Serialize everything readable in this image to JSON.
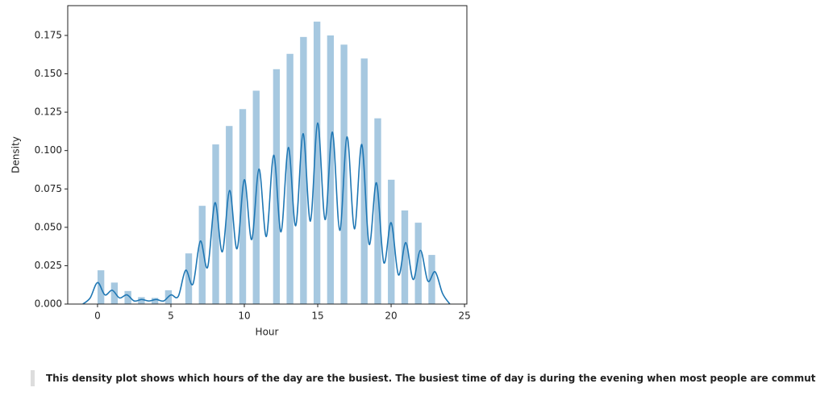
{
  "chart_data": {
    "type": "histogram",
    "xlabel": "Hour",
    "ylabel": "Density",
    "bins": [
      0,
      0.46,
      0.92,
      1.38,
      1.84,
      2.3,
      2.76,
      3.22,
      3.68,
      4.14,
      4.6,
      5.06,
      5.52,
      5.98,
      6.44,
      6.9,
      7.36,
      7.82,
      8.28,
      8.74,
      9.2,
      9.66,
      10.12,
      10.58,
      11.04,
      11.5,
      11.96,
      12.42,
      12.88,
      13.34,
      13.8,
      14.26,
      14.72,
      15.18,
      15.64,
      16.1,
      16.56,
      17.02,
      17.48,
      17.94,
      18.4,
      18.86,
      19.32,
      19.78,
      20.24,
      20.7,
      21.16,
      21.62,
      22.08,
      22.54,
      23
    ],
    "values": [
      0.022,
      0,
      0.014,
      0,
      0.0085,
      0,
      0.0045,
      0,
      0.004,
      0,
      0.009,
      0,
      0,
      0.033,
      0,
      0.064,
      0,
      0.104,
      0,
      0.116,
      0,
      0.127,
      0,
      0.139,
      0,
      0,
      0.153,
      0,
      0.163,
      0,
      0.174,
      0,
      0.184,
      0,
      0.175,
      0,
      0.169,
      0,
      0,
      0.16,
      0,
      0.121,
      0,
      0.081,
      0,
      0.061,
      0,
      0.053,
      0,
      0.032
    ],
    "color": "#a6c8e0",
    "kde": {
      "color": "#1f77b4",
      "x": [
        -1,
        -0.5,
        0,
        0.5,
        1,
        1.5,
        2,
        2.5,
        3,
        3.5,
        4,
        4.5,
        5,
        5.5,
        6,
        6.5,
        7,
        7.5,
        8,
        8.5,
        9,
        9.5,
        10,
        10.5,
        11,
        11.5,
        12,
        12.5,
        13,
        13.5,
        14,
        14.5,
        15,
        15.5,
        16,
        16.5,
        17,
        17.5,
        18,
        18.5,
        19,
        19.5,
        20,
        20.5,
        21,
        21.5,
        22,
        22.5,
        23,
        23.5,
        24
      ],
      "values": [
        0,
        0.004,
        0.014,
        0.006,
        0.009,
        0.004,
        0.006,
        0.002,
        0.003,
        0.002,
        0.003,
        0.002,
        0.006,
        0.005,
        0.022,
        0.013,
        0.041,
        0.024,
        0.066,
        0.034,
        0.074,
        0.036,
        0.081,
        0.042,
        0.088,
        0.044,
        0.097,
        0.047,
        0.102,
        0.051,
        0.111,
        0.054,
        0.118,
        0.055,
        0.112,
        0.048,
        0.109,
        0.049,
        0.104,
        0.039,
        0.079,
        0.027,
        0.053,
        0.019,
        0.04,
        0.016,
        0.035,
        0.015,
        0.021,
        0.007,
        0
      ]
    },
    "xlim": [
      -2.03,
      25.16
    ],
    "ylim": [
      0,
      0.1944
    ],
    "xticks": [
      0,
      5,
      10,
      15,
      20,
      25
    ],
    "yticks": [
      {
        "value": 0,
        "label": "0.000"
      },
      0.025,
      {
        "value": 0.05,
        "label": "0.050"
      },
      0.075,
      {
        "value": 0.1,
        "label": "0.100"
      },
      0.125,
      {
        "value": 0.15,
        "label": "0.150"
      },
      0.175
    ]
  },
  "caption": "This density plot shows which hours of the day are the busiest. The busiest time of day is during the evening when most people are commuting."
}
